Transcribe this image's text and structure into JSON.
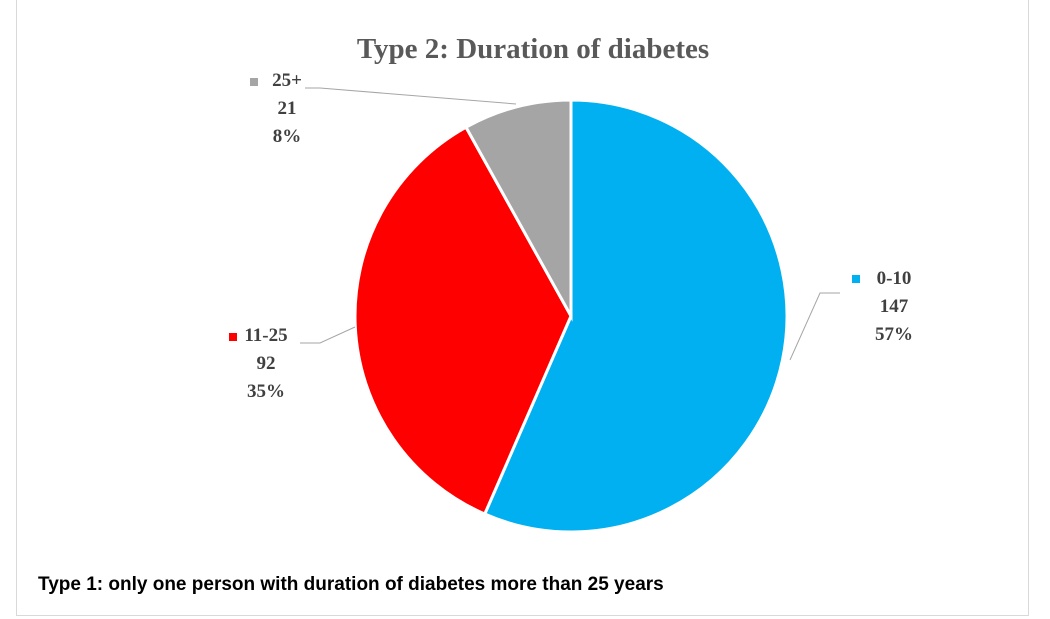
{
  "chart_data": {
    "type": "pie",
    "title": "Type 2: Duration of  diabetes",
    "slices": [
      {
        "label": "0-10",
        "value": 147,
        "percent": "57%",
        "color": "#00b0f0"
      },
      {
        "label": "11-25",
        "value": 92,
        "percent": "35%",
        "color": "#ff0000"
      },
      {
        "label": "25+",
        "value": 21,
        "percent": "8%",
        "color": "#a5a5a5"
      }
    ]
  },
  "footnote": "Type 1: only one person with duration of diabetes more than 25 years"
}
